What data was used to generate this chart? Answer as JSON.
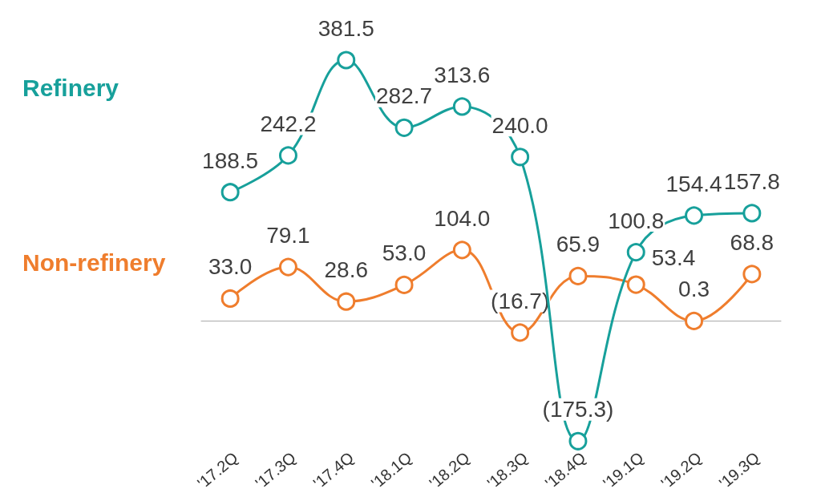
{
  "chart_data": {
    "type": "line",
    "categories": [
      "'17.2Q",
      "'17.3Q",
      "'17.4Q",
      "'18.1Q",
      "'18.2Q",
      "'18.3Q",
      "'18.4Q",
      "'19.1Q",
      "'19.2Q",
      "'19.3Q"
    ],
    "series": [
      {
        "name": "Refinery",
        "color": "#17a09b",
        "values": [
          188.5,
          242.2,
          381.5,
          282.7,
          313.6,
          240.0,
          -175.3,
          100.8,
          154.4,
          157.8
        ],
        "value_labels": [
          "188.5",
          "242.2",
          "381.5",
          "282.7",
          "313.6",
          "240.0",
          "(175.3)",
          "100.8",
          "154.4",
          "157.8"
        ]
      },
      {
        "name": "Non-refinery",
        "color": "#ef7d2d",
        "values": [
          33.0,
          79.1,
          28.6,
          53.0,
          104.0,
          -16.7,
          65.9,
          53.4,
          0.3,
          68.8
        ],
        "value_labels": [
          "33.0",
          "79.1",
          "28.6",
          "53.0",
          "104.0",
          "(16.7)",
          "65.9",
          "53.4",
          "0.3",
          "68.8"
        ]
      }
    ],
    "legend": "left",
    "marker": "circle",
    "line_style": "solid"
  }
}
